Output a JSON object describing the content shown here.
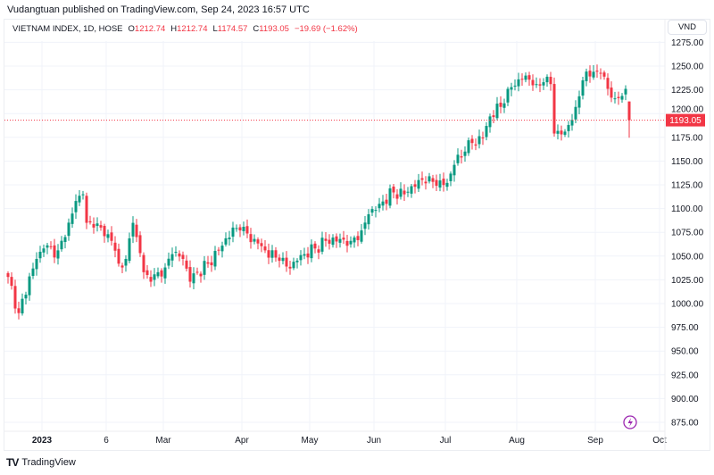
{
  "header": {
    "published": "Vudangtuan published on TradingView.com, Sep 24, 2023 16:57 UTC"
  },
  "legend": {
    "symbol": "VIETNAM INDEX, 1D, HOSE",
    "o_label": "O",
    "o": "1212.74",
    "h_label": "H",
    "h": "1212.74",
    "l_label": "L",
    "l": "1174.57",
    "c_label": "C",
    "c": "1193.05",
    "change": "−19.69 (−1.62%)"
  },
  "currency": "VND",
  "brand": "TradingView",
  "colors": {
    "up": "#089981",
    "down": "#f23645",
    "grid": "#f0f3fa"
  },
  "chart_data": {
    "type": "candlestick",
    "title": "VIETNAM INDEX, 1D, HOSE",
    "ylabel": "VND",
    "ylim": [
      862,
      1285
    ],
    "y_ticks": [
      "1275.00",
      "1250.00",
      "1225.00",
      "1200.00",
      "1175.00",
      "1150.00",
      "1125.00",
      "1100.00",
      "1075.00",
      "1050.00",
      "1025.00",
      "1000.00",
      "975.00",
      "950.00",
      "925.00",
      "900.00",
      "875.00"
    ],
    "x_ticks": [
      {
        "label": "2023",
        "day": 7
      },
      {
        "label": "6",
        "day": 25
      },
      {
        "label": "Mar",
        "day": 41
      },
      {
        "label": "Apr",
        "day": 63
      },
      {
        "label": "May",
        "day": 82
      },
      {
        "label": "Jun",
        "day": 100
      },
      {
        "label": "Jul",
        "day": 120
      },
      {
        "label": "Aug",
        "day": 140
      },
      {
        "label": "Sep",
        "day": 162
      },
      {
        "label": "Oct",
        "day": 180
      }
    ],
    "last_price": "1193.05",
    "approx_close_by_trading_day": [
      [
        0,
        1028
      ],
      [
        3,
        990
      ],
      [
        4,
        1005
      ],
      [
        8,
        1047
      ],
      [
        10,
        1058
      ],
      [
        14,
        1056
      ],
      [
        16,
        1070
      ],
      [
        19,
        1108
      ],
      [
        21,
        1115
      ],
      [
        22,
        1085
      ],
      [
        24,
        1080
      ],
      [
        26,
        1080
      ],
      [
        29,
        1066
      ],
      [
        31,
        1042
      ],
      [
        33,
        1047
      ],
      [
        35,
        1085
      ],
      [
        36,
        1070
      ],
      [
        38,
        1033
      ],
      [
        40,
        1023
      ],
      [
        42,
        1033
      ],
      [
        44,
        1038
      ],
      [
        46,
        1052
      ],
      [
        49,
        1047
      ],
      [
        51,
        1023
      ],
      [
        53,
        1033
      ],
      [
        56,
        1042
      ],
      [
        60,
        1061
      ],
      [
        63,
        1080
      ],
      [
        65,
        1077
      ],
      [
        69,
        1068
      ],
      [
        72,
        1056
      ],
      [
        76,
        1045
      ],
      [
        78,
        1039
      ],
      [
        80,
        1044
      ],
      [
        83,
        1052
      ],
      [
        86,
        1058
      ],
      [
        89,
        1066
      ],
      [
        93,
        1068
      ],
      [
        96,
        1066
      ],
      [
        99,
        1077
      ],
      [
        101,
        1094
      ],
      [
        104,
        1105
      ],
      [
        108,
        1117
      ],
      [
        111,
        1115
      ],
      [
        115,
        1130
      ],
      [
        118,
        1134
      ],
      [
        120,
        1124
      ],
      [
        123,
        1127
      ],
      [
        125,
        1146
      ],
      [
        128,
        1160
      ],
      [
        130,
        1169
      ],
      [
        133,
        1174
      ],
      [
        135,
        1197
      ],
      [
        138,
        1207
      ],
      [
        140,
        1226
      ],
      [
        143,
        1236
      ],
      [
        145,
        1240
      ],
      [
        148,
        1231
      ],
      [
        150,
        1233
      ],
      [
        152,
        1231
      ],
      [
        153,
        1179
      ],
      [
        156,
        1181
      ],
      [
        157,
        1188
      ],
      [
        159,
        1207
      ],
      [
        161,
        1235
      ],
      [
        164,
        1244
      ],
      [
        166,
        1242
      ],
      [
        168,
        1226
      ],
      [
        170,
        1216
      ],
      [
        173,
        1226
      ],
      [
        174,
        1212.74
      ]
    ],
    "last_candle": {
      "open": 1212.74,
      "high": 1212.74,
      "low": 1174.57,
      "close": 1193.05
    }
  }
}
